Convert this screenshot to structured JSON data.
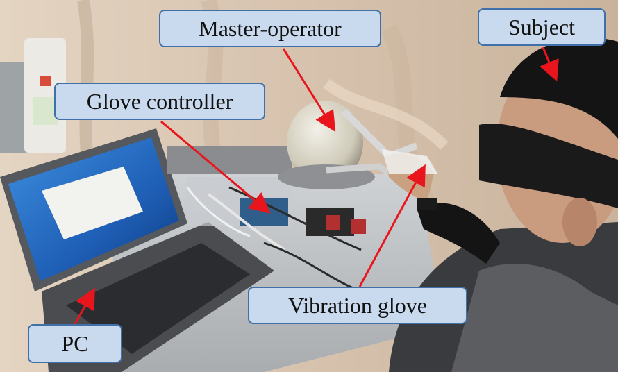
{
  "labels": {
    "master_operator": "Master-operator",
    "subject": "Subject",
    "glove_controller": "Glove controller",
    "vibration_glove": "Vibration glove",
    "pc": "PC"
  },
  "colors": {
    "label_fill": "#c9d9ee",
    "label_border": "#3f70a8",
    "arrow": "#e8161c"
  }
}
